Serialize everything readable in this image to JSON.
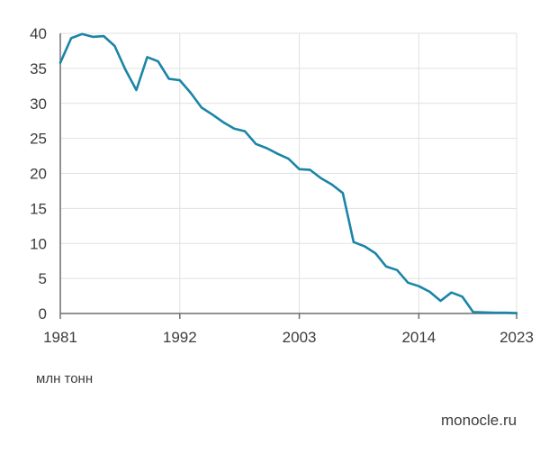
{
  "chart_data": {
    "type": "line",
    "unit_label": "млн тонн",
    "source": "monocle.ru",
    "x": [
      1981,
      1982,
      1983,
      1984,
      1985,
      1986,
      1987,
      1988,
      1989,
      1990,
      1991,
      1992,
      1993,
      1994,
      1995,
      1996,
      1997,
      1998,
      1999,
      2000,
      2001,
      2002,
      2003,
      2004,
      2005,
      2006,
      2007,
      2008,
      2009,
      2010,
      2011,
      2012,
      2013,
      2014,
      2015,
      2016,
      2017,
      2018,
      2019,
      2020,
      2021,
      2022,
      2023
    ],
    "values": [
      35.8,
      39.3,
      39.9,
      39.5,
      39.6,
      38.2,
      34.8,
      31.9,
      36.6,
      36.0,
      33.5,
      33.3,
      31.5,
      29.4,
      28.4,
      27.3,
      26.4,
      26.0,
      24.2,
      23.6,
      22.8,
      22.1,
      20.6,
      20.5,
      19.3,
      18.4,
      17.2,
      10.2,
      9.6,
      8.6,
      6.7,
      6.2,
      4.4,
      3.9,
      3.1,
      1.8,
      3.0,
      2.4,
      0.2,
      0.15,
      0.1,
      0.1,
      0.05
    ],
    "x_ticks": [
      1981,
      1992,
      2003,
      2014,
      2023
    ],
    "y_ticks": [
      0,
      5,
      10,
      15,
      20,
      25,
      30,
      35,
      40
    ],
    "xlim": [
      1981,
      2023
    ],
    "ylim": [
      0,
      40
    ],
    "grid": true,
    "line_color": "#1a85a6",
    "grid_color": "#e1e1e1",
    "axis_color": "#6e6e6e"
  }
}
